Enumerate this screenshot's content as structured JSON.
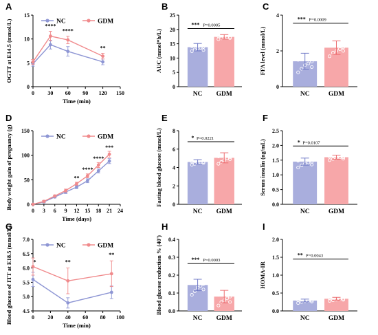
{
  "colors": {
    "nc": "#8e96d4",
    "gdm": "#f08a8c",
    "nc_bar": "#a9aedd",
    "gdm_bar": "#f7a7a9"
  },
  "chart_data": [
    {
      "id": "A",
      "panel": "A",
      "type": "line",
      "ylabel": "OGTT at E14.5 (mmol/L)",
      "xlabel": "Time (min)",
      "xlim": [
        0,
        150
      ],
      "ylim": [
        0,
        15
      ],
      "xticks": [
        "0",
        "30",
        "60",
        "90",
        "120",
        "150"
      ],
      "yticks": [
        "0",
        "5",
        "10",
        "15"
      ],
      "legend": [
        "NC",
        "GDM"
      ],
      "series": [
        {
          "name": "NC",
          "x": [
            0,
            30,
            60,
            120
          ],
          "y": [
            4.8,
            8.8,
            7.4,
            5.2
          ],
          "err": [
            0.5,
            0.9,
            1.0,
            0.6
          ]
        },
        {
          "name": "GDM",
          "x": [
            0,
            30,
            60,
            120
          ],
          "y": [
            5.2,
            10.6,
            9.8,
            6.4
          ],
          "err": [
            0.5,
            1.0,
            0.8,
            0.6
          ]
        }
      ],
      "annotations": [
        {
          "x": 30,
          "y": 12.3,
          "text": "****"
        },
        {
          "x": 60,
          "y": 11.3,
          "text": "****"
        },
        {
          "x": 120,
          "y": 7.7,
          "text": "**"
        }
      ]
    },
    {
      "id": "B",
      "panel": "B",
      "type": "bar",
      "ylabel": "AUC (mmol*h/L)",
      "categories": [
        "NC",
        "GDM"
      ],
      "ylim": [
        0,
        25
      ],
      "yticks": [
        "0",
        "5",
        "10",
        "15",
        "20",
        "25"
      ],
      "values": [
        13.8,
        17.4
      ],
      "err": [
        1.3,
        0.8
      ],
      "points": [
        [
          12.4,
          13.0,
          13.3,
          13.6,
          13.9,
          14.1,
          14.5,
          14.9,
          15.2,
          12.8
        ],
        [
          16.6,
          16.9,
          17.1,
          17.3,
          17.4,
          17.6,
          17.8,
          18.0,
          18.2,
          17.0
        ]
      ],
      "significance": "***",
      "p_text": "P=0.0005",
      "sig_y": 20.3
    },
    {
      "id": "C",
      "panel": "C",
      "type": "bar",
      "ylabel": "FFA level (mmol/L)",
      "categories": [
        "NC",
        "GDM"
      ],
      "ylim": [
        0,
        4
      ],
      "yticks": [
        "0",
        "2",
        "4"
      ],
      "values": [
        1.42,
        2.18
      ],
      "err": [
        0.45,
        0.38
      ],
      "points": [
        [
          0.8,
          1.0,
          1.2,
          1.3,
          1.4,
          1.5,
          1.6,
          1.8,
          2.0,
          1.1
        ],
        [
          1.7,
          1.9,
          2.0,
          2.1,
          2.2,
          2.3,
          2.4,
          2.6,
          2.9,
          2.0
        ]
      ],
      "significance": "***",
      "p_text": "P=0.0009",
      "sig_y": 3.55
    },
    {
      "id": "D",
      "panel": "D",
      "type": "line",
      "ylabel": "Body weight gain of pregnancy (g)",
      "xlabel": "Time (days)",
      "xlim": [
        0,
        24
      ],
      "ylim": [
        0,
        150
      ],
      "xticks": [
        "0",
        "3",
        "6",
        "9",
        "12",
        "15",
        "18",
        "21",
        "24"
      ],
      "yticks": [
        "0",
        "50",
        "100",
        "150"
      ],
      "legend": [
        "NC",
        "GDM"
      ],
      "series": [
        {
          "name": "NC",
          "x": [
            0,
            3,
            6,
            9,
            12,
            15,
            18,
            21
          ],
          "y": [
            0,
            5,
            15,
            25,
            35,
            48,
            68,
            88
          ],
          "err": [
            1,
            2,
            2,
            3,
            3,
            4,
            4,
            5
          ]
        },
        {
          "name": "GDM",
          "x": [
            0,
            3,
            6,
            9,
            12,
            15,
            18,
            21
          ],
          "y": [
            0,
            6,
            17,
            28,
            42,
            58,
            80,
            102
          ],
          "err": [
            1,
            2,
            2,
            3,
            3,
            4,
            5,
            6
          ]
        }
      ],
      "annotations": [
        {
          "x": 12,
          "y": 50,
          "text": "**"
        },
        {
          "x": 15,
          "y": 67,
          "text": "****"
        },
        {
          "x": 18,
          "y": 90,
          "text": "****"
        },
        {
          "x": 21,
          "y": 112,
          "text": "***"
        }
      ]
    },
    {
      "id": "E",
      "panel": "E",
      "type": "bar",
      "ylabel": "Fasting blood glucose (mmol/L)",
      "categories": [
        "NC",
        "GDM"
      ],
      "ylim": [
        0,
        8
      ],
      "yticks": [
        "0",
        "2",
        "4",
        "6",
        "8"
      ],
      "values": [
        4.6,
        5.05
      ],
      "err": [
        0.25,
        0.55
      ],
      "points": [
        [
          4.3,
          4.4,
          4.5,
          4.55,
          4.6,
          4.65,
          4.7,
          4.8,
          4.9,
          4.5
        ],
        [
          4.4,
          4.6,
          4.8,
          5.0,
          5.1,
          5.2,
          5.4,
          5.6,
          6.2,
          4.9
        ]
      ],
      "significance": "*",
      "p_text": "P=0.0221",
      "sig_y": 6.8
    },
    {
      "id": "F",
      "panel": "F",
      "type": "bar",
      "ylabel": "Serum insulin (ng/mL)",
      "categories": [
        "NC",
        "GDM"
      ],
      "ylim": [
        0,
        2.5
      ],
      "yticks": [
        "0.0",
        "0.5",
        "1.0",
        "1.5",
        "2.0",
        "2.5"
      ],
      "values": [
        1.45,
        1.6
      ],
      "err": [
        0.12,
        0.07
      ],
      "points": [
        [
          1.25,
          1.32,
          1.38,
          1.42,
          1.45,
          1.48,
          1.52,
          1.58,
          1.62,
          1.35
        ],
        [
          1.5,
          1.54,
          1.57,
          1.59,
          1.6,
          1.62,
          1.64,
          1.67,
          1.7,
          1.55
        ]
      ],
      "significance": "*",
      "p_text": "P=0.0107",
      "sig_y": 1.98
    },
    {
      "id": "G",
      "panel": "G",
      "type": "line",
      "ylabel": "Blood glucose of ITT at E18.5 (mmol/L)",
      "xlabel": "Time (min)",
      "xlim": [
        0,
        100
      ],
      "ylim": [
        4.5,
        7.0
      ],
      "xticks": [
        "0",
        "20",
        "40",
        "60",
        "80",
        "100"
      ],
      "yticks": [
        "4.5",
        "5.0",
        "5.5",
        "6.0",
        "6.5",
        "7.0"
      ],
      "legend": [
        "NC",
        "GDM"
      ],
      "series": [
        {
          "name": "NC",
          "x": [
            0,
            40,
            90
          ],
          "y": [
            5.6,
            4.78,
            5.15
          ],
          "err": [
            0.25,
            0.18,
            0.22
          ]
        },
        {
          "name": "GDM",
          "x": [
            0,
            40,
            90
          ],
          "y": [
            6.05,
            5.55,
            5.8
          ],
          "err": [
            0.3,
            0.45,
            0.45
          ]
        }
      ],
      "annotations": [
        {
          "x": 2,
          "y": 6.15,
          "text": "*"
        },
        {
          "x": 40,
          "y": 6.15,
          "text": "**"
        },
        {
          "x": 90,
          "y": 6.4,
          "text": "**"
        }
      ]
    },
    {
      "id": "H",
      "panel": "H",
      "type": "bar",
      "ylabel": "Blood glucose reduction % (40')",
      "categories": [
        "NC",
        "GDM"
      ],
      "ylim": [
        0,
        0.4
      ],
      "yticks": [
        "0.0",
        "0.1",
        "0.2",
        "0.3",
        "0.4"
      ],
      "values": [
        0.145,
        0.08
      ],
      "err": [
        0.032,
        0.035
      ],
      "points": [
        [
          0.09,
          0.11,
          0.13,
          0.14,
          0.15,
          0.16,
          0.17,
          0.18,
          0.2,
          0.12
        ],
        [
          0.03,
          0.05,
          0.06,
          0.07,
          0.08,
          0.09,
          0.1,
          0.11,
          0.13,
          0.05
        ]
      ],
      "significance": "***",
      "p_text": "P=0.0003",
      "sig_y": 0.265
    },
    {
      "id": "I",
      "panel": "I",
      "type": "bar",
      "ylabel": "HOMA-IR",
      "categories": [
        "NC",
        "GDM"
      ],
      "ylim": [
        0,
        2.0
      ],
      "yticks": [
        "0.0",
        "0.5",
        "1.0",
        "1.5",
        "2.0"
      ],
      "values": [
        0.29,
        0.34
      ],
      "err": [
        0.04,
        0.04
      ],
      "points": [
        [
          0.22,
          0.25,
          0.27,
          0.28,
          0.29,
          0.3,
          0.31,
          0.33,
          0.35,
          0.26
        ],
        [
          0.28,
          0.3,
          0.32,
          0.33,
          0.34,
          0.35,
          0.36,
          0.38,
          0.4,
          0.31
        ]
      ],
      "significance": "**",
      "p_text": "P=0.0043",
      "sig_y": 1.45
    }
  ]
}
